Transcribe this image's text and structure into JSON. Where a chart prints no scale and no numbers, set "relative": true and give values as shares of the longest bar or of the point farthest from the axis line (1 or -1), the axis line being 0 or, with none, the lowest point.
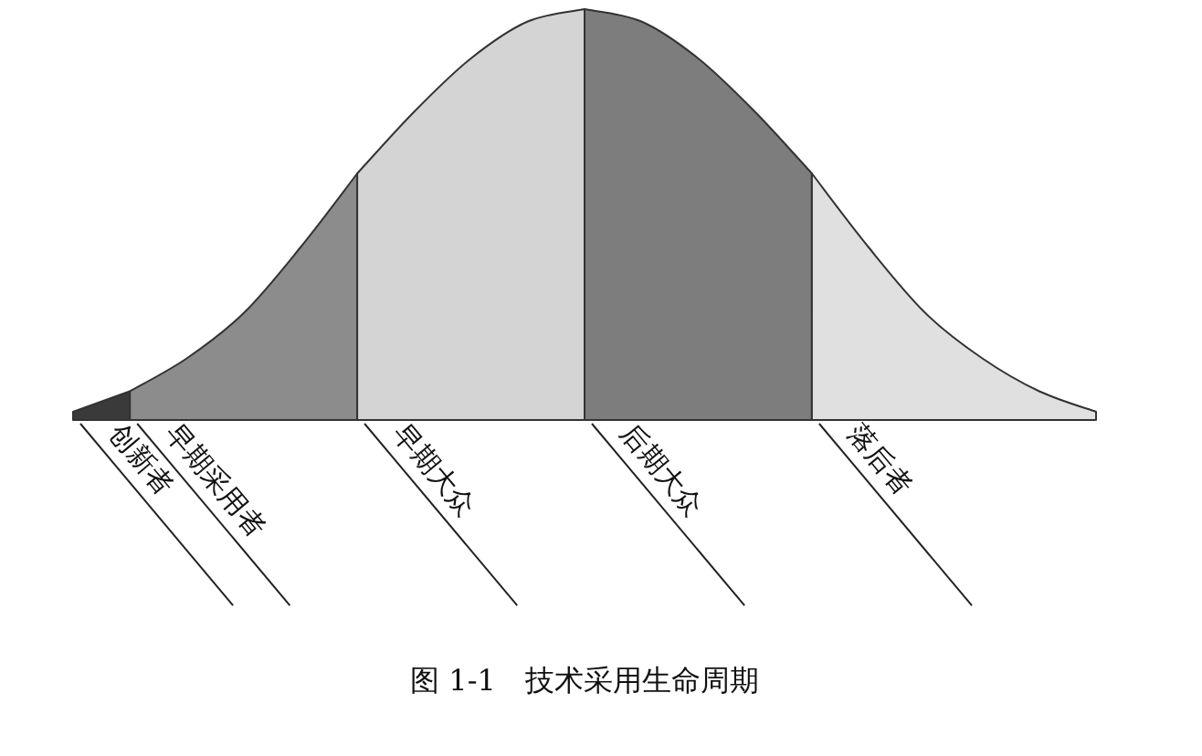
{
  "chart_data": {
    "type": "area",
    "relative": true,
    "legend": false,
    "categories": [
      null,
      null,
      null,
      null,
      null,
      null,
      null,
      null,
      null,
      null,
      null,
      null,
      null,
      null,
      null,
      null,
      null,
      null,
      null
    ],
    "series": [
      {
        "name": "创新者",
        "color": "#3a3a3a",
        "values": [
          0.02,
          0.07,
          null,
          null,
          null,
          null,
          null,
          null,
          null,
          null,
          null,
          null,
          null,
          null,
          null,
          null,
          null,
          null,
          null
        ]
      },
      {
        "name": "早期采用者",
        "color": "#8c8c8c",
        "values": [
          null,
          0.07,
          0.15,
          0.26,
          0.42,
          0.6,
          null,
          null,
          null,
          null,
          null,
          null,
          null,
          null,
          null,
          null,
          null,
          null,
          null
        ]
      },
      {
        "name": "早期大众",
        "color": "#d4d4d4",
        "values": [
          null,
          null,
          null,
          null,
          null,
          0.6,
          0.75,
          0.88,
          0.97,
          1,
          null,
          null,
          null,
          null,
          null,
          null,
          null,
          null,
          null
        ]
      },
      {
        "name": "后期大众",
        "color": "#7d7d7d",
        "values": [
          null,
          null,
          null,
          null,
          null,
          null,
          null,
          null,
          null,
          1,
          0.97,
          0.88,
          0.75,
          0.6,
          null,
          null,
          null,
          null,
          null
        ]
      },
      {
        "name": "落后者",
        "color": "#e0e0e0",
        "values": [
          null,
          null,
          null,
          null,
          null,
          null,
          null,
          null,
          null,
          null,
          null,
          null,
          null,
          0.6,
          0.42,
          0.26,
          0.15,
          0.07,
          0.02
        ]
      }
    ],
    "annotations": [
      "图 1-1　技术采用生命周期"
    ]
  }
}
